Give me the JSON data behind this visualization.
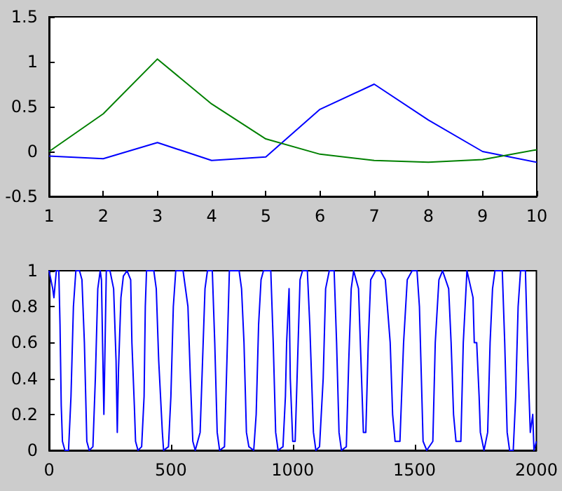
{
  "chart_data": [
    {
      "type": "line",
      "x": [
        1,
        2,
        3,
        4,
        5,
        6,
        7,
        8,
        9,
        10
      ],
      "marker": "none",
      "xlim": [
        1,
        10
      ],
      "xticks": [
        1,
        2,
        3,
        4,
        5,
        6,
        7,
        8,
        9,
        10
      ],
      "ylim": [
        -0.5,
        1.5
      ],
      "yticks": [
        -0.5,
        0,
        0.5,
        1,
        1.5
      ],
      "series": [
        {
          "color": "#0000ff",
          "values": [
            -0.05,
            -0.08,
            0.1,
            -0.1,
            -0.06,
            0.47,
            0.75,
            0.35,
            0.0,
            -0.12
          ]
        },
        {
          "color": "#008000",
          "values": [
            0.0,
            0.42,
            1.03,
            0.53,
            0.14,
            -0.03,
            -0.1,
            -0.12,
            -0.09,
            0.02
          ]
        }
      ]
    },
    {
      "type": "line",
      "marker": "none",
      "xlim": [
        0,
        2000
      ],
      "xticks": [
        0,
        500,
        1000,
        1500,
        2000
      ],
      "ylim": [
        0,
        1
      ],
      "yticks": [
        0,
        0.2,
        0.4,
        0.6,
        0.8,
        1
      ],
      "x": [
        0,
        15,
        20,
        30,
        40,
        45,
        50,
        55,
        65,
        80,
        90,
        100,
        110,
        125,
        135,
        145,
        155,
        165,
        180,
        190,
        200,
        210,
        215,
        225,
        235,
        250,
        265,
        275,
        280,
        285,
        295,
        305,
        320,
        335,
        340,
        350,
        355,
        365,
        380,
        390,
        395,
        400,
        430,
        440,
        450,
        465,
        470,
        490,
        500,
        510,
        520,
        550,
        570,
        580,
        590,
        600,
        620,
        630,
        640,
        650,
        670,
        680,
        690,
        700,
        720,
        730,
        740,
        780,
        790,
        800,
        810,
        820,
        840,
        850,
        860,
        870,
        880,
        910,
        920,
        930,
        940,
        960,
        970,
        975,
        985,
        990,
        1000,
        1010,
        1020,
        1030,
        1040,
        1060,
        1070,
        1085,
        1095,
        1110,
        1125,
        1135,
        1150,
        1170,
        1180,
        1190,
        1200,
        1220,
        1230,
        1240,
        1250,
        1270,
        1280,
        1290,
        1300,
        1310,
        1320,
        1340,
        1360,
        1380,
        1400,
        1410,
        1420,
        1440,
        1455,
        1470,
        1490,
        1510,
        1520,
        1530,
        1535,
        1550,
        1575,
        1585,
        1600,
        1615,
        1640,
        1650,
        1660,
        1670,
        1690,
        1700,
        1715,
        1740,
        1745,
        1755,
        1765,
        1770,
        1785,
        1800,
        1810,
        1820,
        1830,
        1860,
        1870,
        1880,
        1890,
        1905,
        1915,
        1925,
        1935,
        1955,
        1965,
        1975,
        1985,
        1990,
        2000
      ],
      "series": [
        {
          "color": "#0000ff",
          "values": [
            1,
            0.9,
            0.85,
            1,
            1,
            0.7,
            0.25,
            0.05,
            0,
            0,
            0.3,
            0.8,
            1,
            1,
            0.95,
            0.6,
            0.05,
            0,
            0.02,
            0.4,
            0.9,
            1,
            0.95,
            0.2,
            1,
            1,
            0.9,
            0.5,
            0.1,
            0.45,
            0.85,
            0.97,
            1,
            0.95,
            0.6,
            0.25,
            0.05,
            0,
            0.02,
            0.3,
            0.8,
            1,
            1,
            0.9,
            0.5,
            0.1,
            0,
            0.02,
            0.3,
            0.8,
            1,
            1,
            0.8,
            0.4,
            0.05,
            0,
            0.1,
            0.5,
            0.9,
            1,
            1,
            0.6,
            0.1,
            0,
            0.02,
            0.5,
            1,
            1,
            0.9,
            0.6,
            0.1,
            0.02,
            0,
            0.2,
            0.7,
            0.95,
            1,
            1,
            0.6,
            0.1,
            0,
            0.02,
            0.3,
            0.6,
            0.9,
            0.4,
            0.05,
            0.05,
            0.5,
            0.95,
            1,
            1,
            0.7,
            0.1,
            0,
            0.02,
            0.4,
            0.9,
            1,
            1,
            0.6,
            0.1,
            0,
            0.02,
            0.5,
            0.9,
            1,
            0.9,
            0.5,
            0.1,
            0.1,
            0.6,
            0.95,
            1,
            1,
            0.95,
            0.6,
            0.2,
            0.05,
            0.05,
            0.6,
            0.95,
            1,
            1,
            0.8,
            0.3,
            0.05,
            0,
            0.05,
            0.6,
            0.95,
            1,
            0.9,
            0.6,
            0.2,
            0.05,
            0.05,
            0.6,
            1,
            0.85,
            0.6,
            0.6,
            0.3,
            0.1,
            0,
            0.1,
            0.6,
            0.9,
            1,
            1,
            0.6,
            0.1,
            0,
            0,
            0.3,
            0.8,
            1,
            1,
            0.5,
            0.1,
            0.2,
            0,
            0.05
          ]
        }
      ]
    }
  ]
}
